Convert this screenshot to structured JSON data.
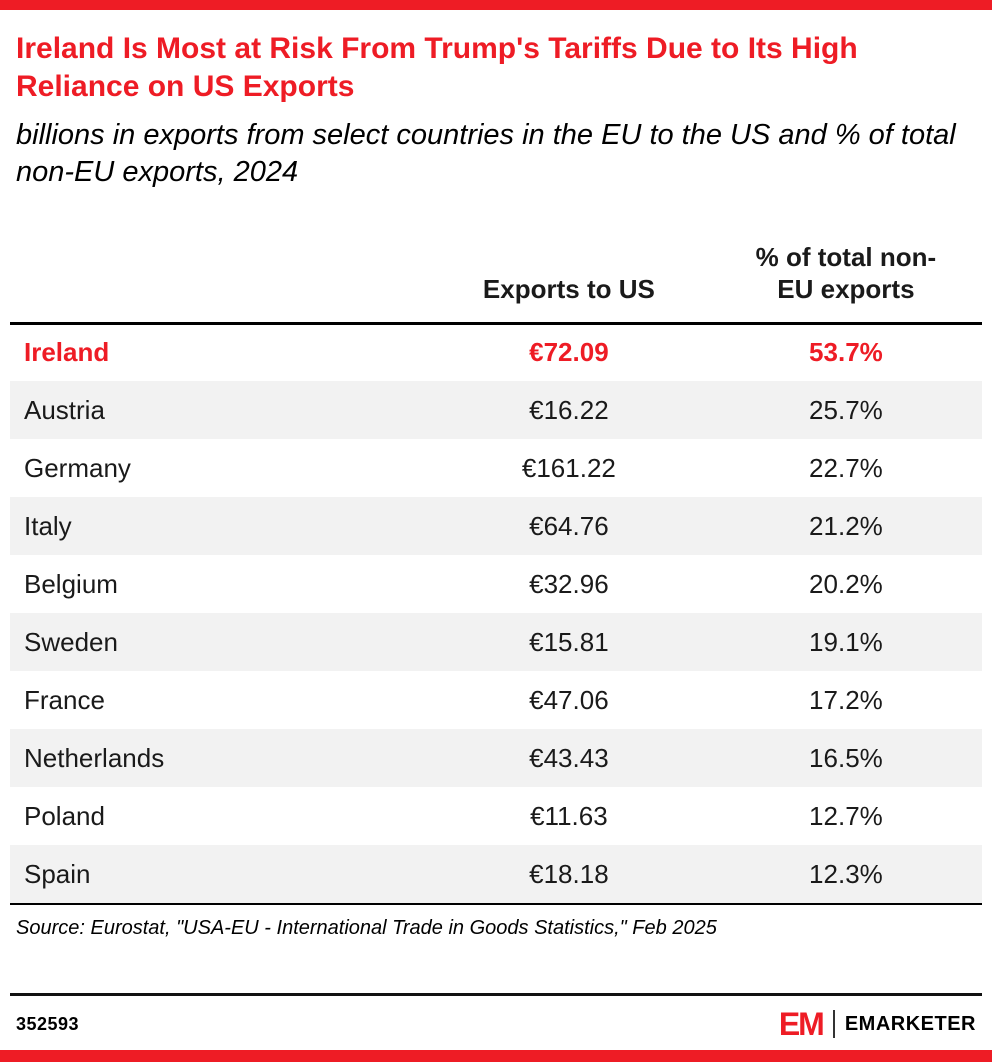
{
  "colors": {
    "accent": "#EE1C25",
    "row_stripe": "#F2F2F2"
  },
  "header": {
    "title": "Ireland Is Most at Risk From Trump's Tariffs Due to Its High Reliance on US Exports",
    "subtitle": "billions in exports from select countries in the EU to the US and % of total non-EU exports, 2024"
  },
  "chart_data": {
    "type": "table",
    "title": "Ireland Is Most at Risk From Trump's Tariffs Due to Its High Reliance on US Exports",
    "subtitle": "billions in exports from select countries in the EU to the US and % of total non-EU exports, 2024",
    "columns": [
      "Exports to US",
      "% of total non-EU exports"
    ],
    "rows": [
      {
        "country": "Ireland",
        "exports_to_us": "€72.09",
        "pct_non_eu": "53.7%",
        "highlight": true
      },
      {
        "country": "Austria",
        "exports_to_us": "€16.22",
        "pct_non_eu": "25.7%",
        "highlight": false
      },
      {
        "country": "Germany",
        "exports_to_us": "€161.22",
        "pct_non_eu": "22.7%",
        "highlight": false
      },
      {
        "country": "Italy",
        "exports_to_us": "€64.76",
        "pct_non_eu": "21.2%",
        "highlight": false
      },
      {
        "country": "Belgium",
        "exports_to_us": "€32.96",
        "pct_non_eu": "20.2%",
        "highlight": false
      },
      {
        "country": "Sweden",
        "exports_to_us": "€15.81",
        "pct_non_eu": "19.1%",
        "highlight": false
      },
      {
        "country": "France",
        "exports_to_us": "€47.06",
        "pct_non_eu": "17.2%",
        "highlight": false
      },
      {
        "country": "Netherlands",
        "exports_to_us": "€43.43",
        "pct_non_eu": "16.5%",
        "highlight": false
      },
      {
        "country": "Poland",
        "exports_to_us": "€11.63",
        "pct_non_eu": "12.7%",
        "highlight": false
      },
      {
        "country": "Spain",
        "exports_to_us": "€18.18",
        "pct_non_eu": "12.3%",
        "highlight": false
      }
    ]
  },
  "footer": {
    "source": "Source: Eurostat, \"USA-EU - International Trade in Goods Statistics,\" Feb 2025",
    "chart_id": "352593",
    "logo_em": "EM",
    "logo_text": "EMARKETER"
  }
}
